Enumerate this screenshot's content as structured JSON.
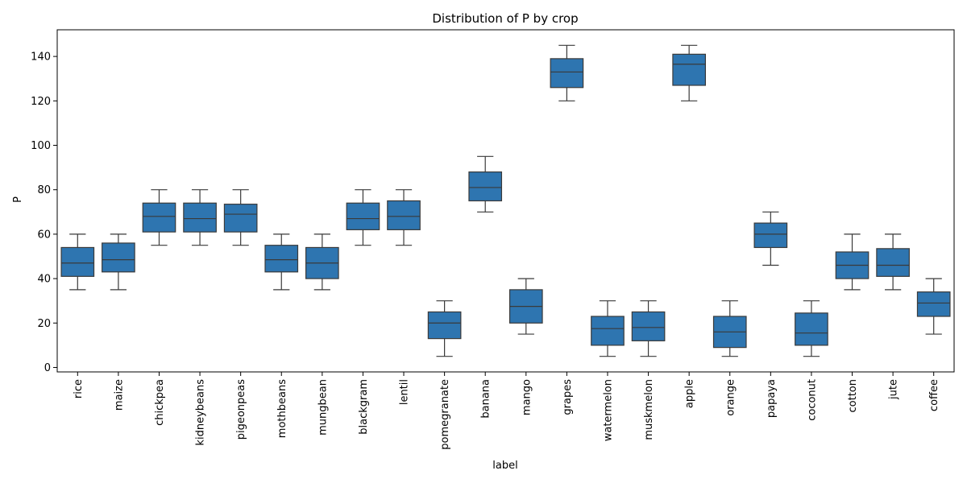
{
  "chart_data": {
    "type": "box",
    "title": "Distribution of P by crop",
    "xlabel": "label",
    "ylabel": "P",
    "ylim": [
      -2,
      152
    ],
    "yticks": [
      0,
      20,
      40,
      60,
      80,
      100,
      120,
      140
    ],
    "grid": false,
    "box_color": "#2e75b0",
    "line_color": "#3a3a3a",
    "categories": [
      "rice",
      "maize",
      "chickpea",
      "kidneybeans",
      "pigeonpeas",
      "mothbeans",
      "mungbean",
      "blackgram",
      "lentil",
      "pomegranate",
      "banana",
      "mango",
      "grapes",
      "watermelon",
      "muskmelon",
      "apple",
      "orange",
      "papaya",
      "coconut",
      "cotton",
      "jute",
      "coffee"
    ],
    "boxes": [
      {
        "min": 35,
        "q1": 41,
        "median": 47,
        "q3": 54,
        "max": 60
      },
      {
        "min": 35,
        "q1": 43,
        "median": 48.5,
        "q3": 56,
        "max": 60
      },
      {
        "min": 55,
        "q1": 61,
        "median": 68,
        "q3": 74,
        "max": 80
      },
      {
        "min": 55,
        "q1": 61,
        "median": 67,
        "q3": 74,
        "max": 80
      },
      {
        "min": 55,
        "q1": 61,
        "median": 69,
        "q3": 73.5,
        "max": 80
      },
      {
        "min": 35,
        "q1": 43,
        "median": 48.5,
        "q3": 55,
        "max": 60
      },
      {
        "min": 35,
        "q1": 40,
        "median": 47,
        "q3": 54,
        "max": 60
      },
      {
        "min": 55,
        "q1": 62,
        "median": 67,
        "q3": 74,
        "max": 80
      },
      {
        "min": 55,
        "q1": 62,
        "median": 68,
        "q3": 75,
        "max": 80
      },
      {
        "min": 5,
        "q1": 13,
        "median": 20,
        "q3": 25,
        "max": 30
      },
      {
        "min": 70,
        "q1": 75,
        "median": 81,
        "q3": 88,
        "max": 95
      },
      {
        "min": 15,
        "q1": 20,
        "median": 27.5,
        "q3": 35,
        "max": 40
      },
      {
        "min": 120,
        "q1": 126,
        "median": 133,
        "q3": 139,
        "max": 145
      },
      {
        "min": 5,
        "q1": 10,
        "median": 17.5,
        "q3": 23,
        "max": 30
      },
      {
        "min": 5,
        "q1": 12,
        "median": 18,
        "q3": 25,
        "max": 30
      },
      {
        "min": 120,
        "q1": 127,
        "median": 136.5,
        "q3": 141,
        "max": 145
      },
      {
        "min": 5,
        "q1": 9,
        "median": 16,
        "q3": 23,
        "max": 30
      },
      {
        "min": 46,
        "q1": 54,
        "median": 60,
        "q3": 65,
        "max": 70
      },
      {
        "min": 5,
        "q1": 10,
        "median": 15.5,
        "q3": 24.5,
        "max": 30
      },
      {
        "min": 35,
        "q1": 40,
        "median": 46,
        "q3": 52,
        "max": 60
      },
      {
        "min": 35,
        "q1": 41,
        "median": 46,
        "q3": 53.5,
        "max": 60
      },
      {
        "min": 15,
        "q1": 23,
        "median": 29,
        "q3": 34,
        "max": 40
      }
    ]
  }
}
